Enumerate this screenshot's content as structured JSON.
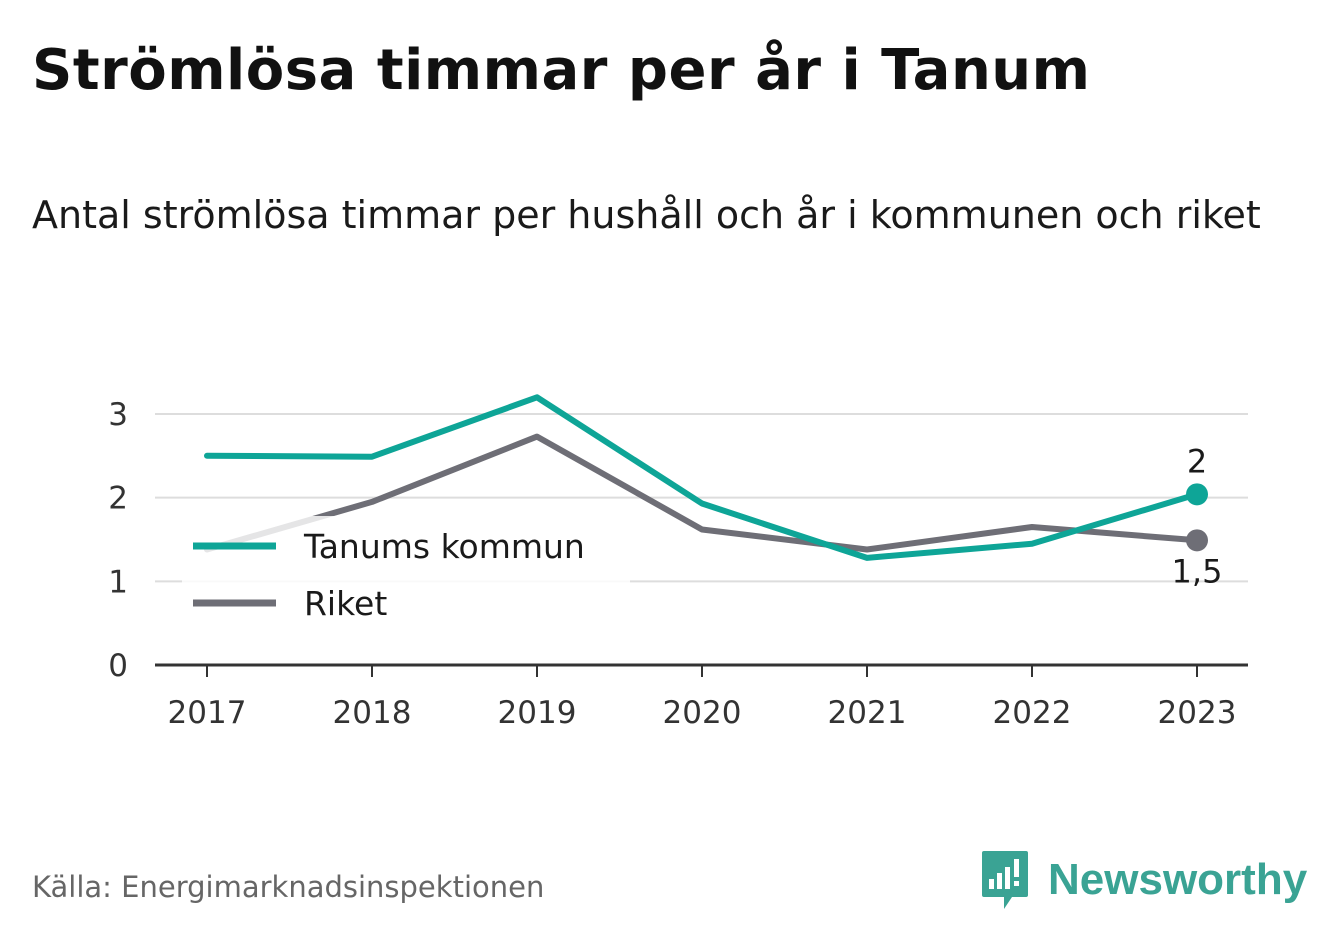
{
  "header": {
    "title": "Strömlösa timmar per år i Tanum",
    "subtitle": "Antal strömlösa timmar per hushåll och år i kommunen och riket"
  },
  "footer": {
    "source": "Källa: Energimarknadsinspektionen",
    "brand": "Newsworthy",
    "brand_icon": "bar-chart-bubble-icon"
  },
  "colors": {
    "tanum": "#0ea597",
    "riket": "#6e6e76",
    "grid": "#dddddd",
    "axis": "#333333",
    "brand": "#3aa394"
  },
  "chart_data": {
    "type": "line",
    "title": "Strömlösa timmar per år i Tanum",
    "subtitle": "Antal strömlösa timmar per hushåll och år i kommunen och riket",
    "x": [
      "2017",
      "2018",
      "2019",
      "2020",
      "2021",
      "2022",
      "2023"
    ],
    "series": [
      {
        "name": "Tanums kommun",
        "color": "#0ea597",
        "values": [
          2.5,
          2.49,
          3.2,
          1.93,
          1.28,
          1.45,
          2.04
        ],
        "end_label": "2"
      },
      {
        "name": "Riket",
        "color": "#6e6e76",
        "values": [
          1.38,
          1.95,
          2.73,
          1.62,
          1.38,
          1.65,
          1.49
        ],
        "end_label": "1,5"
      }
    ],
    "y_ticks": [
      "0",
      "1",
      "2",
      "3"
    ],
    "ylim": [
      0,
      3
    ],
    "xlabel": "",
    "ylabel": "",
    "grid": true,
    "legend": "left"
  }
}
